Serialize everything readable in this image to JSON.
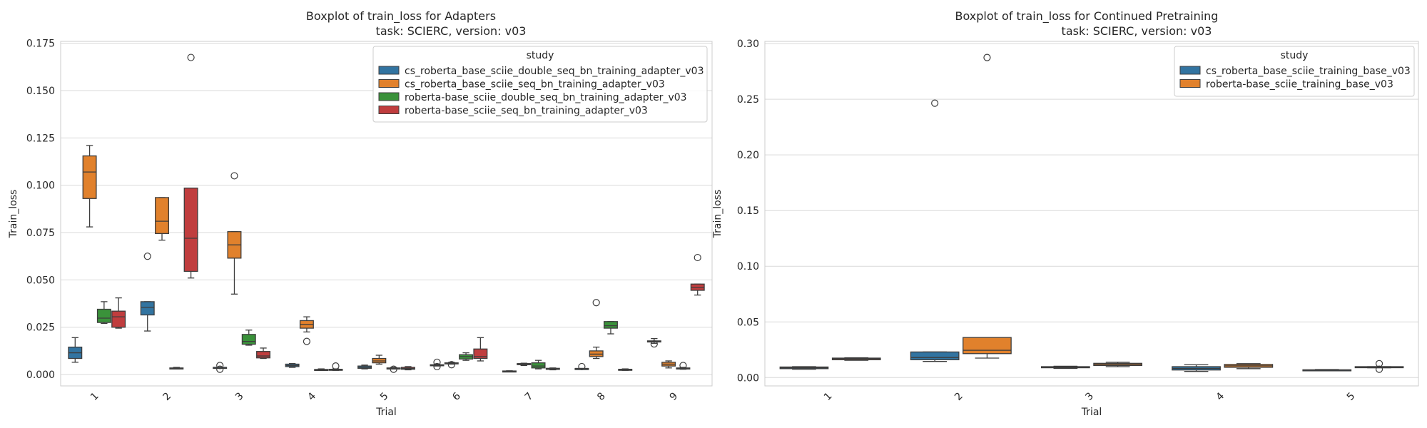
{
  "chart_data": [
    {
      "type": "boxplot",
      "title": "Boxplot of train_loss for Adapters",
      "subtitle": "task: SCIERC, version: v03",
      "xlabel": "Trial",
      "ylabel": "Train_loss",
      "ylim": [
        -0.006,
        0.176
      ],
      "yticks": [
        "0.000",
        "0.025",
        "0.050",
        "0.075",
        "0.100",
        "0.125",
        "0.150",
        "0.175"
      ],
      "categories": [
        "1",
        "2",
        "3",
        "4",
        "5",
        "6",
        "7",
        "8",
        "9"
      ],
      "grid": "horizontal",
      "legend_title": "study",
      "legend_position": "top-right",
      "series": [
        {
          "name": "cs_roberta_base_sciie_double_seq_bn_training_adapter_v03",
          "color": "#3274a1",
          "boxes": [
            {
              "cat": "1",
              "min": 0.0065,
              "q1": 0.0085,
              "med": 0.0115,
              "q3": 0.0145,
              "max": 0.0195,
              "outliers": []
            },
            {
              "cat": "2",
              "min": 0.023,
              "q1": 0.0315,
              "med": 0.0355,
              "q3": 0.0385,
              "max": 0.0385,
              "outliers": [
                0.0625
              ]
            },
            {
              "cat": "3",
              "min": 0.0038,
              "q1": 0.0038,
              "med": 0.0038,
              "q3": 0.0038,
              "max": 0.0038,
              "outliers": [
                0.0048,
                0.0028
              ]
            },
            {
              "cat": "4",
              "min": 0.0038,
              "q1": 0.0042,
              "med": 0.0048,
              "q3": 0.0055,
              "max": 0.0058,
              "outliers": []
            },
            {
              "cat": "5",
              "min": 0.003,
              "q1": 0.0033,
              "med": 0.0038,
              "q3": 0.0045,
              "max": 0.005,
              "outliers": []
            },
            {
              "cat": "6",
              "min": 0.0045,
              "q1": 0.0048,
              "med": 0.005,
              "q3": 0.0052,
              "max": 0.0055,
              "outliers": [
                0.0065,
                0.0042
              ]
            },
            {
              "cat": "7",
              "min": 0.0015,
              "q1": 0.0017,
              "med": 0.0018,
              "q3": 0.0019,
              "max": 0.002,
              "outliers": []
            },
            {
              "cat": "8",
              "min": 0.0032,
              "q1": 0.0032,
              "med": 0.0032,
              "q3": 0.0032,
              "max": 0.0032,
              "outliers": [
                0.0042
              ]
            },
            {
              "cat": "9",
              "min": 0.0165,
              "q1": 0.0172,
              "med": 0.0175,
              "q3": 0.0178,
              "max": 0.019,
              "outliers": [
                0.0162
              ]
            }
          ]
        },
        {
          "name": "cs_roberta_base_sciie_seq_bn_training_adapter_v03",
          "color": "#e1812c",
          "boxes": [
            {
              "cat": "1",
              "min": 0.078,
              "q1": 0.093,
              "med": 0.107,
              "q3": 0.1155,
              "max": 0.121,
              "outliers": []
            },
            {
              "cat": "2",
              "min": 0.071,
              "q1": 0.0745,
              "med": 0.081,
              "q3": 0.0935,
              "max": 0.0935,
              "outliers": []
            },
            {
              "cat": "3",
              "min": 0.0425,
              "q1": 0.0615,
              "med": 0.0685,
              "q3": 0.0755,
              "max": 0.0755,
              "outliers": [
                0.105
              ]
            },
            {
              "cat": "4",
              "min": 0.0225,
              "q1": 0.0245,
              "med": 0.0265,
              "q3": 0.0285,
              "max": 0.0305,
              "outliers": [
                0.0175
              ]
            },
            {
              "cat": "5",
              "min": 0.0055,
              "q1": 0.0062,
              "med": 0.0072,
              "q3": 0.0085,
              "max": 0.0102,
              "outliers": []
            },
            {
              "cat": "6",
              "min": 0.0055,
              "q1": 0.0058,
              "med": 0.006,
              "q3": 0.0062,
              "max": 0.0065,
              "outliers": [
                0.0052
              ]
            },
            {
              "cat": "7",
              "min": 0.0048,
              "q1": 0.0052,
              "med": 0.0055,
              "q3": 0.0058,
              "max": 0.006,
              "outliers": []
            },
            {
              "cat": "8",
              "min": 0.0085,
              "q1": 0.0095,
              "med": 0.0108,
              "q3": 0.0125,
              "max": 0.0145,
              "outliers": [
                0.038
              ]
            },
            {
              "cat": "9",
              "min": 0.0035,
              "q1": 0.0045,
              "med": 0.0055,
              "q3": 0.0065,
              "max": 0.0072,
              "outliers": []
            }
          ]
        },
        {
          "name": "roberta-base_sciie_double_seq_bn_training_adapter_v03",
          "color": "#3a923a",
          "boxes": [
            {
              "cat": "1",
              "min": 0.027,
              "q1": 0.0275,
              "med": 0.0298,
              "q3": 0.0345,
              "max": 0.0385,
              "outliers": []
            },
            {
              "cat": "2",
              "min": 0.003,
              "q1": 0.0032,
              "med": 0.0033,
              "q3": 0.0035,
              "max": 0.0038,
              "outliers": []
            },
            {
              "cat": "3",
              "min": 0.0155,
              "q1": 0.016,
              "med": 0.0175,
              "q3": 0.0212,
              "max": 0.0235,
              "outliers": []
            },
            {
              "cat": "4",
              "min": 0.0022,
              "q1": 0.0024,
              "med": 0.0025,
              "q3": 0.0027,
              "max": 0.003,
              "outliers": []
            },
            {
              "cat": "5",
              "min": 0.003,
              "q1": 0.0032,
              "med": 0.0033,
              "q3": 0.0035,
              "max": 0.0038,
              "outliers": [
                0.0028
              ]
            },
            {
              "cat": "6",
              "min": 0.0075,
              "q1": 0.0082,
              "med": 0.0095,
              "q3": 0.0105,
              "max": 0.0115,
              "outliers": []
            },
            {
              "cat": "7",
              "min": 0.003,
              "q1": 0.0035,
              "med": 0.0045,
              "q3": 0.0062,
              "max": 0.0075,
              "outliers": []
            },
            {
              "cat": "8",
              "min": 0.0215,
              "q1": 0.0245,
              "med": 0.0258,
              "q3": 0.028,
              "max": 0.028,
              "outliers": []
            },
            {
              "cat": "9",
              "min": 0.0028,
              "q1": 0.0031,
              "med": 0.0033,
              "q3": 0.0035,
              "max": 0.0038,
              "outliers": [
                0.0048
              ]
            }
          ]
        },
        {
          "name": "roberta-base_sciie_seq_bn_training_adapter_v03",
          "color": "#c03d3e",
          "boxes": [
            {
              "cat": "1",
              "min": 0.0245,
              "q1": 0.025,
              "med": 0.0305,
              "q3": 0.0335,
              "max": 0.0405,
              "outliers": []
            },
            {
              "cat": "2",
              "min": 0.051,
              "q1": 0.0545,
              "med": 0.072,
              "q3": 0.0985,
              "max": 0.0985,
              "outliers": [
                0.1675
              ]
            },
            {
              "cat": "3",
              "min": 0.0085,
              "q1": 0.0088,
              "med": 0.0098,
              "q3": 0.0122,
              "max": 0.014,
              "outliers": []
            },
            {
              "cat": "4",
              "min": 0.0022,
              "q1": 0.0024,
              "med": 0.0026,
              "q3": 0.0028,
              "max": 0.003,
              "outliers": [
                0.0045
              ]
            },
            {
              "cat": "5",
              "min": 0.0025,
              "q1": 0.0028,
              "med": 0.0032,
              "q3": 0.0038,
              "max": 0.0042,
              "outliers": []
            },
            {
              "cat": "6",
              "min": 0.0072,
              "q1": 0.0085,
              "med": 0.0095,
              "q3": 0.0135,
              "max": 0.0195,
              "outliers": []
            },
            {
              "cat": "7",
              "min": 0.0025,
              "q1": 0.0028,
              "med": 0.003,
              "q3": 0.0033,
              "max": 0.0035,
              "outliers": []
            },
            {
              "cat": "8",
              "min": 0.0022,
              "q1": 0.0024,
              "med": 0.0026,
              "q3": 0.0028,
              "max": 0.003,
              "outliers": []
            },
            {
              "cat": "9",
              "min": 0.042,
              "q1": 0.0445,
              "med": 0.046,
              "q3": 0.0478,
              "max": 0.0478,
              "outliers": [
                0.0618
              ]
            }
          ]
        }
      ]
    },
    {
      "type": "boxplot",
      "title": "Boxplot of train_loss for Continued Pretraining",
      "subtitle": "task: SCIERC, version: v03",
      "xlabel": "Trial",
      "ylabel": "Train_loss",
      "ylim": [
        -0.0075,
        0.302
      ],
      "yticks": [
        "0.00",
        "0.05",
        "0.10",
        "0.15",
        "0.20",
        "0.25",
        "0.30"
      ],
      "categories": [
        "1",
        "2",
        "3",
        "4",
        "5"
      ],
      "grid": "horizontal",
      "legend_title": "study",
      "legend_position": "top-right",
      "series": [
        {
          "name": "cs_roberta_base_sciie_training_base_v03",
          "color": "#3274a1",
          "boxes": [
            {
              "cat": "1",
              "min": 0.0075,
              "q1": 0.008,
              "med": 0.0088,
              "q3": 0.0095,
              "max": 0.0098,
              "outliers": []
            },
            {
              "cat": "2",
              "min": 0.0145,
              "q1": 0.016,
              "med": 0.018,
              "q3": 0.023,
              "max": 0.023,
              "outliers": [
                0.2465
              ]
            },
            {
              "cat": "3",
              "min": 0.0082,
              "q1": 0.0088,
              "med": 0.0092,
              "q3": 0.0098,
              "max": 0.0102,
              "outliers": []
            },
            {
              "cat": "4",
              "min": 0.0055,
              "q1": 0.0068,
              "med": 0.0082,
              "q3": 0.0098,
              "max": 0.0115,
              "outliers": []
            },
            {
              "cat": "5",
              "min": 0.0062,
              "q1": 0.0065,
              "med": 0.0068,
              "q3": 0.007,
              "max": 0.0072,
              "outliers": []
            }
          ]
        },
        {
          "name": "roberta-base_sciie_training_base_v03",
          "color": "#e1812c",
          "boxes": [
            {
              "cat": "1",
              "min": 0.0155,
              "q1": 0.016,
              "med": 0.0168,
              "q3": 0.0175,
              "max": 0.0178,
              "outliers": []
            },
            {
              "cat": "2",
              "min": 0.0175,
              "q1": 0.0215,
              "med": 0.0245,
              "q3": 0.036,
              "max": 0.036,
              "outliers": [
                0.2875
              ]
            },
            {
              "cat": "3",
              "min": 0.0098,
              "q1": 0.0108,
              "med": 0.0118,
              "q3": 0.0128,
              "max": 0.0138,
              "outliers": []
            },
            {
              "cat": "4",
              "min": 0.008,
              "q1": 0.0092,
              "med": 0.0105,
              "q3": 0.0118,
              "max": 0.0125,
              "outliers": []
            },
            {
              "cat": "5",
              "min": 0.0088,
              "q1": 0.009,
              "med": 0.0095,
              "q3": 0.0098,
              "max": 0.0098,
              "outliers": [
                0.0125,
                0.0075
              ]
            }
          ]
        }
      ]
    }
  ]
}
